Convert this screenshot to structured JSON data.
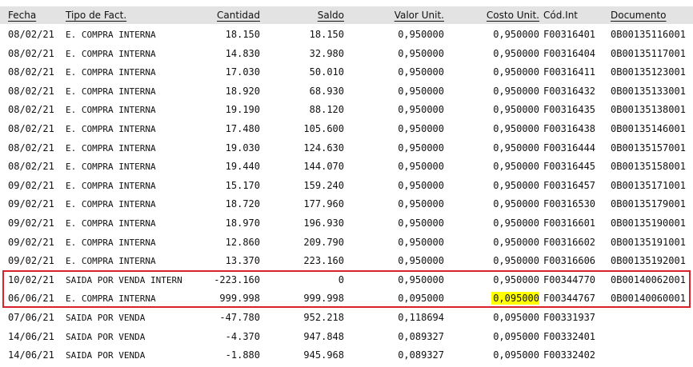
{
  "header": {
    "fecha": "Fecha",
    "tipo": "Tipo de Fact.",
    "cantidad": "Cantidad",
    "saldo": "Saldo",
    "valor_unit": "Valor Unit.",
    "costo_unit": "Costo Unit.",
    "cod_int": "Cód.Int",
    "documento": "Documento"
  },
  "rows": [
    {
      "fecha": "08/02/21",
      "tipo": "E. COMPRA INTERNA",
      "cantidad": "18.150",
      "saldo": "18.150",
      "valor_unit": "0,950000",
      "costo_unit": "0,950000",
      "cod_int": "F00316401",
      "documento": "0B00135116001"
    },
    {
      "fecha": "08/02/21",
      "tipo": "E. COMPRA INTERNA",
      "cantidad": "14.830",
      "saldo": "32.980",
      "valor_unit": "0,950000",
      "costo_unit": "0,950000",
      "cod_int": "F00316404",
      "documento": "0B00135117001"
    },
    {
      "fecha": "08/02/21",
      "tipo": "E. COMPRA INTERNA",
      "cantidad": "17.030",
      "saldo": "50.010",
      "valor_unit": "0,950000",
      "costo_unit": "0,950000",
      "cod_int": "F00316411",
      "documento": "0B00135123001"
    },
    {
      "fecha": "08/02/21",
      "tipo": "E. COMPRA INTERNA",
      "cantidad": "18.920",
      "saldo": "68.930",
      "valor_unit": "0,950000",
      "costo_unit": "0,950000",
      "cod_int": "F00316432",
      "documento": "0B00135133001"
    },
    {
      "fecha": "08/02/21",
      "tipo": "E. COMPRA INTERNA",
      "cantidad": "19.190",
      "saldo": "88.120",
      "valor_unit": "0,950000",
      "costo_unit": "0,950000",
      "cod_int": "F00316435",
      "documento": "0B00135138001"
    },
    {
      "fecha": "08/02/21",
      "tipo": "E. COMPRA INTERNA",
      "cantidad": "17.480",
      "saldo": "105.600",
      "valor_unit": "0,950000",
      "costo_unit": "0,950000",
      "cod_int": "F00316438",
      "documento": "0B00135146001"
    },
    {
      "fecha": "08/02/21",
      "tipo": "E. COMPRA INTERNA",
      "cantidad": "19.030",
      "saldo": "124.630",
      "valor_unit": "0,950000",
      "costo_unit": "0,950000",
      "cod_int": "F00316444",
      "documento": "0B00135157001"
    },
    {
      "fecha": "08/02/21",
      "tipo": "E. COMPRA INTERNA",
      "cantidad": "19.440",
      "saldo": "144.070",
      "valor_unit": "0,950000",
      "costo_unit": "0,950000",
      "cod_int": "F00316445",
      "documento": "0B00135158001"
    },
    {
      "fecha": "09/02/21",
      "tipo": "E. COMPRA INTERNA",
      "cantidad": "15.170",
      "saldo": "159.240",
      "valor_unit": "0,950000",
      "costo_unit": "0,950000",
      "cod_int": "F00316457",
      "documento": "0B00135171001"
    },
    {
      "fecha": "09/02/21",
      "tipo": "E. COMPRA INTERNA",
      "cantidad": "18.720",
      "saldo": "177.960",
      "valor_unit": "0,950000",
      "costo_unit": "0,950000",
      "cod_int": "F00316530",
      "documento": "0B00135179001"
    },
    {
      "fecha": "09/02/21",
      "tipo": "E. COMPRA INTERNA",
      "cantidad": "18.970",
      "saldo": "196.930",
      "valor_unit": "0,950000",
      "costo_unit": "0,950000",
      "cod_int": "F00316601",
      "documento": "0B00135190001"
    },
    {
      "fecha": "09/02/21",
      "tipo": "E. COMPRA INTERNA",
      "cantidad": "12.860",
      "saldo": "209.790",
      "valor_unit": "0,950000",
      "costo_unit": "0,950000",
      "cod_int": "F00316602",
      "documento": "0B00135191001"
    },
    {
      "fecha": "09/02/21",
      "tipo": "E. COMPRA INTERNA",
      "cantidad": "13.370",
      "saldo": "223.160",
      "valor_unit": "0,950000",
      "costo_unit": "0,950000",
      "cod_int": "F00316606",
      "documento": "0B00135192001"
    },
    {
      "fecha": "10/02/21",
      "tipo": "SAIDA POR VENDA INTERN",
      "cantidad": "-223.160",
      "saldo": "0",
      "valor_unit": "0,950000",
      "costo_unit": "0,950000",
      "cod_int": "F00344770",
      "documento": "0B00140062001"
    },
    {
      "fecha": "06/06/21",
      "tipo": "E. COMPRA INTERNA",
      "cantidad": "999.998",
      "saldo": "999.998",
      "valor_unit": "0,095000",
      "costo_unit": "0,095000",
      "cod_int": "F00344767",
      "documento": "0B00140060001",
      "highlight_costo": true
    },
    {
      "fecha": "07/06/21",
      "tipo": "SAIDA POR VENDA",
      "cantidad": "-47.780",
      "saldo": "952.218",
      "valor_unit": "0,118694",
      "costo_unit": "0,095000",
      "cod_int": "F00331937",
      "documento": ""
    },
    {
      "fecha": "14/06/21",
      "tipo": "SAIDA POR VENDA",
      "cantidad": "-4.370",
      "saldo": "947.848",
      "valor_unit": "0,089327",
      "costo_unit": "0,095000",
      "cod_int": "F00332401",
      "documento": ""
    },
    {
      "fecha": "14/06/21",
      "tipo": "SAIDA POR VENDA",
      "cantidad": "-1.880",
      "saldo": "945.968",
      "valor_unit": "0,089327",
      "costo_unit": "0,095000",
      "cod_int": "F00332402",
      "documento": ""
    }
  ],
  "colors": {
    "header_bg": "#e3e3e3",
    "selection_border": "#d8212b",
    "highlight": "#ffff00"
  }
}
